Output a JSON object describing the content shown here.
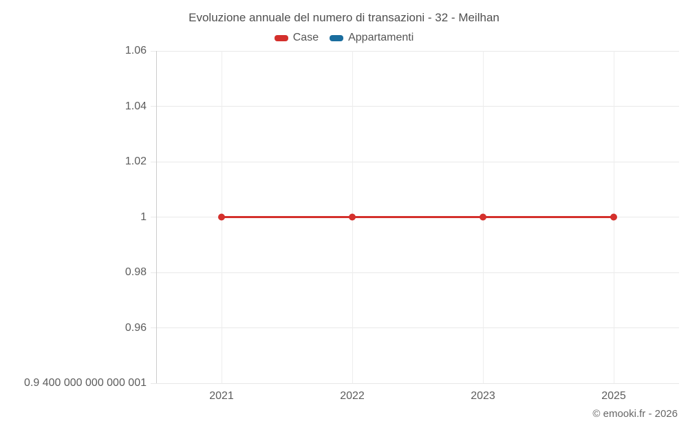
{
  "title": "Evoluzione annuale del numero di transazioni - 32 - Meilhan",
  "credit": "© emooki.fr - 2026",
  "chart_data": {
    "type": "line",
    "title": "Evoluzione annuale del numero di transazioni - 32 - Meilhan",
    "xlabel": "",
    "ylabel": "",
    "categories": [
      "2021",
      "2022",
      "2023",
      "2025"
    ],
    "series": [
      {
        "name": "Case",
        "color": "#d4302c",
        "values": [
          1,
          1,
          1,
          1
        ]
      },
      {
        "name": "Appartamenti",
        "color": "#1a6d9e",
        "values": []
      }
    ],
    "ylim": [
      0.94,
      1.06
    ],
    "yticks": [
      {
        "label": "1.06",
        "value": 1.06
      },
      {
        "label": "1.04",
        "value": 1.04
      },
      {
        "label": "1.02",
        "value": 1.02
      },
      {
        "label": "1",
        "value": 1.0
      },
      {
        "label": "0.98",
        "value": 0.98
      },
      {
        "label": "0.96",
        "value": 0.96
      },
      {
        "label": "0.9 400 000 000 000 001",
        "value": 0.94
      }
    ],
    "grid": true,
    "legend_position": "top"
  }
}
